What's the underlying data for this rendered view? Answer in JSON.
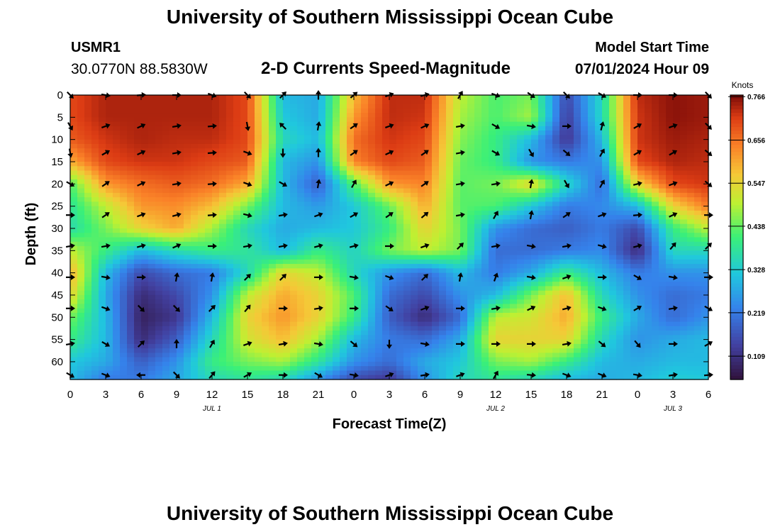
{
  "header": {
    "title": "University of Southern Mississippi Ocean Cube",
    "station_id": "USMR1",
    "coordinates": "30.0770N  88.5830W",
    "subtitle": "2-D Currents Speed-Magnitude",
    "start_label": "Model Start Time",
    "start_value": "07/01/2024 Hour 09"
  },
  "footer": {
    "title": "University of Southern Mississippi Ocean Cube"
  },
  "chart_data": {
    "type": "heatmap",
    "title": "2-D Currents Speed-Magnitude",
    "xlabel": "Forecast Time(Z)",
    "ylabel": "Depth (ft)",
    "x_hours_range": [
      0,
      54
    ],
    "x_tick_labels": [
      "0",
      "3",
      "6",
      "9",
      "12",
      "15",
      "18",
      "21",
      "0",
      "3",
      "6",
      "9",
      "12",
      "15",
      "18",
      "21",
      "0",
      "3",
      "6"
    ],
    "date_labels": [
      {
        "label": "JUL 1",
        "hour": 12
      },
      {
        "label": "JUL 2",
        "hour": 36
      },
      {
        "label": "JUL 3",
        "hour": 51
      }
    ],
    "y_ticks": [
      0,
      5,
      10,
      15,
      20,
      25,
      30,
      35,
      40,
      45,
      50,
      55,
      60
    ],
    "ylim": [
      0,
      64
    ],
    "colorbar": {
      "unit": "Knots",
      "ticks": [
        "0.766",
        "0.656",
        "0.547",
        "0.438",
        "0.328",
        "0.219",
        "0.109"
      ],
      "tick_values": [
        0.766,
        0.656,
        0.547,
        0.438,
        0.328,
        0.219,
        0.109
      ],
      "range": [
        0.05,
        0.77
      ]
    },
    "speed_grid": {
      "x_hours": [
        0,
        3,
        6,
        9,
        12,
        15,
        18,
        21,
        24,
        27,
        30,
        33,
        36,
        39,
        42,
        45,
        48,
        51,
        54
      ],
      "depth_ft": [
        0,
        5,
        10,
        15,
        20,
        25,
        30,
        35,
        40,
        45,
        50,
        55,
        60,
        64
      ],
      "values_knots": [
        [
          0.7,
          0.74,
          0.74,
          0.74,
          0.74,
          0.7,
          0.3,
          0.28,
          0.58,
          0.73,
          0.73,
          0.5,
          0.42,
          0.45,
          0.15,
          0.35,
          0.73,
          0.76,
          0.75
        ],
        [
          0.7,
          0.74,
          0.74,
          0.74,
          0.74,
          0.7,
          0.32,
          0.28,
          0.62,
          0.73,
          0.72,
          0.48,
          0.42,
          0.48,
          0.13,
          0.35,
          0.72,
          0.76,
          0.75
        ],
        [
          0.68,
          0.72,
          0.74,
          0.73,
          0.73,
          0.7,
          0.35,
          0.3,
          0.66,
          0.72,
          0.7,
          0.46,
          0.4,
          0.3,
          0.12,
          0.3,
          0.72,
          0.75,
          0.74
        ],
        [
          0.6,
          0.7,
          0.72,
          0.72,
          0.7,
          0.68,
          0.3,
          0.25,
          0.64,
          0.7,
          0.68,
          0.44,
          0.4,
          0.25,
          0.22,
          0.25,
          0.7,
          0.74,
          0.73
        ],
        [
          0.42,
          0.62,
          0.66,
          0.68,
          0.66,
          0.6,
          0.3,
          0.18,
          0.42,
          0.62,
          0.64,
          0.43,
          0.45,
          0.55,
          0.35,
          0.2,
          0.55,
          0.7,
          0.72
        ],
        [
          0.38,
          0.5,
          0.62,
          0.63,
          0.58,
          0.45,
          0.3,
          0.26,
          0.32,
          0.44,
          0.6,
          0.43,
          0.42,
          0.32,
          0.22,
          0.24,
          0.3,
          0.55,
          0.65
        ],
        [
          0.36,
          0.45,
          0.55,
          0.6,
          0.48,
          0.35,
          0.28,
          0.3,
          0.32,
          0.4,
          0.55,
          0.45,
          0.25,
          0.2,
          0.18,
          0.22,
          0.15,
          0.4,
          0.5
        ],
        [
          0.5,
          0.4,
          0.3,
          0.36,
          0.4,
          0.38,
          0.3,
          0.4,
          0.34,
          0.45,
          0.5,
          0.45,
          0.2,
          0.2,
          0.22,
          0.24,
          0.1,
          0.35,
          0.35
        ],
        [
          0.6,
          0.3,
          0.15,
          0.2,
          0.22,
          0.35,
          0.55,
          0.5,
          0.35,
          0.25,
          0.2,
          0.3,
          0.22,
          0.28,
          0.4,
          0.3,
          0.22,
          0.25,
          0.25
        ],
        [
          0.55,
          0.28,
          0.1,
          0.15,
          0.25,
          0.5,
          0.6,
          0.55,
          0.42,
          0.2,
          0.15,
          0.25,
          0.3,
          0.45,
          0.58,
          0.35,
          0.25,
          0.2,
          0.22
        ],
        [
          0.45,
          0.3,
          0.08,
          0.12,
          0.3,
          0.55,
          0.62,
          0.55,
          0.4,
          0.18,
          0.1,
          0.2,
          0.5,
          0.52,
          0.6,
          0.4,
          0.28,
          0.2,
          0.25
        ],
        [
          0.4,
          0.3,
          0.1,
          0.18,
          0.35,
          0.52,
          0.58,
          0.48,
          0.3,
          0.22,
          0.2,
          0.28,
          0.55,
          0.55,
          0.55,
          0.35,
          0.25,
          0.28,
          0.3
        ],
        [
          0.32,
          0.28,
          0.18,
          0.25,
          0.4,
          0.45,
          0.48,
          0.38,
          0.25,
          0.2,
          0.28,
          0.32,
          0.45,
          0.48,
          0.4,
          0.3,
          0.28,
          0.3,
          0.3
        ],
        [
          0.3,
          0.22,
          0.22,
          0.28,
          0.35,
          0.38,
          0.35,
          0.25,
          0.15,
          0.12,
          0.25,
          0.35,
          0.38,
          0.35,
          0.3,
          0.28,
          0.3,
          0.33,
          0.32
        ]
      ]
    },
    "vector_grid": {
      "x_hours": [
        0,
        3,
        6,
        9,
        12,
        15,
        18,
        21,
        24,
        27,
        30,
        33,
        36,
        39,
        42,
        45,
        48,
        51,
        54
      ],
      "depth_ft": [
        0,
        7,
        13,
        20,
        27,
        34,
        41,
        48,
        56,
        63
      ],
      "angles_deg": [
        [
          45,
          10,
          -5,
          0,
          20,
          45,
          -45,
          -90,
          -40,
          -20,
          -15,
          -60,
          20,
          35,
          45,
          30,
          0,
          0,
          45
        ],
        [
          60,
          -20,
          -25,
          -10,
          -5,
          80,
          -135,
          -80,
          -35,
          -20,
          -25,
          -10,
          30,
          10,
          0,
          -75,
          -30,
          -20,
          45
        ],
        [
          80,
          -30,
          -25,
          -10,
          -5,
          20,
          90,
          -90,
          -35,
          -25,
          -35,
          -10,
          30,
          60,
          40,
          -60,
          -30,
          -30,
          40
        ],
        [
          30,
          -35,
          -25,
          -10,
          -5,
          20,
          30,
          -80,
          -60,
          -25,
          -35,
          -10,
          -10,
          -80,
          60,
          -60,
          -15,
          -20,
          40
        ],
        [
          0,
          -35,
          -20,
          -15,
          -5,
          15,
          -10,
          -20,
          -30,
          -35,
          -40,
          -10,
          -60,
          -80,
          -35,
          -20,
          -5,
          -25,
          0
        ],
        [
          -10,
          -10,
          -15,
          -25,
          0,
          -10,
          -10,
          -15,
          -15,
          0,
          -20,
          -45,
          -10,
          10,
          -10,
          15,
          -15,
          -50,
          -45
        ],
        [
          0,
          10,
          0,
          -80,
          -80,
          -45,
          -45,
          0,
          10,
          20,
          -45,
          -80,
          -70,
          10,
          -20,
          0,
          30,
          10,
          0
        ],
        [
          0,
          20,
          45,
          45,
          -45,
          -50,
          0,
          -10,
          0,
          35,
          -20,
          0,
          -10,
          -25,
          -15,
          20,
          -30,
          -10,
          30
        ],
        [
          -10,
          30,
          -45,
          -90,
          -60,
          -20,
          -10,
          10,
          40,
          90,
          10,
          0,
          0,
          0,
          -10,
          40,
          50,
          0,
          -30
        ],
        [
          30,
          20,
          180,
          45,
          -50,
          -30,
          0,
          30,
          10,
          -20,
          -10,
          -20,
          -60,
          5,
          20,
          20,
          10,
          -10,
          -5
        ]
      ]
    }
  }
}
